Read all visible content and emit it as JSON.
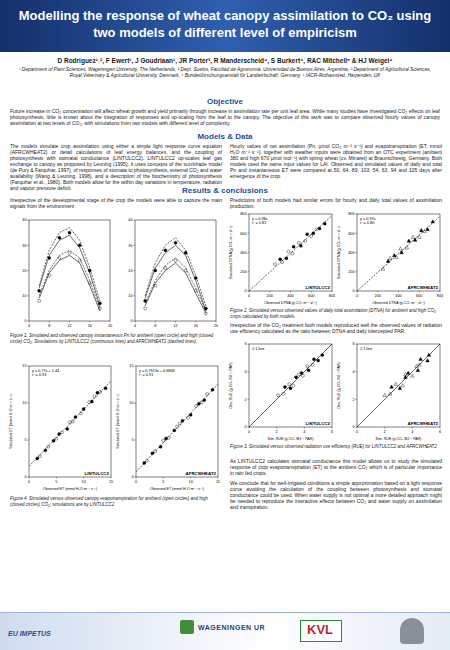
{
  "header": {
    "title": "Modelling the response of wheat canopy assimilation to CO₂ using two models of different level of empiricism",
    "authors": "D Rodriguez¹˒², F Ewert¹, J Goudriaan¹, JR Porter³, R Manderscheid⁴, S Burkert⁴, RAC Mitchell⁵ & HJ Weigel⁴",
    "affiliations": "¹ Department of Plant Sciences, Wageningen University, The Netherlands, ² Dept. Suelos, Facultad de Agronomía, Universidad de Buenos Aires, Argentina, ³ Department of Agricultural Sciences, Royal Veterinary & Agricultural University, Denmark, ⁴ Bundesforschungsanstalt für Landwirtschaft, Germany, ⁵ IACR-Rothamsted, Harpenden, UK"
  },
  "objective": {
    "heading": "Objective",
    "text": "Future increase in CO₂ concentration will affect wheat growth and yield primarily through increase in assimilation rate per unit leaf area. While many studies have investigated CO₂ effects on leaf photosynthesis, little is known about the integration of responses and up-scaling from the leaf to the canopy. The objective of this work was to compare observed hourly values of canopy assimilation at two levels of CO₂, with simulations from two models with different level of complexity."
  },
  "models": {
    "heading": "Models & Data",
    "left": "The models simulate crop assimilation using either a simple light response curve equation (AFRCWHEAT2) or detail calculations of leaf energy balances, and the coupling of photosynthesis with stomatal conductance (LINTULCC2). LINTULCC2 up-scales leaf gas exchange to canopy as proposed by Leuning (1995). It uses concepts of the sun/shade model (de Pury & Farquhar, 1997), of responses of stomata to photosynthesis, external CO₂ and water availability (Wang & Leuning, 1998), and a description of the biochemistry of photosynthesis (Farquhar et al., 1980). Both models allow for the within day variations in temperature, radiation and vapour pressure deficit.",
    "right": "Hourly values of net assimilation (Pn, µmol CO₂ m⁻² s⁻¹) and evapotranspiration (ET, mmol H₂O m⁻² s⁻¹), together with weather inputs were obtained from an OTC experiment (ambient 380 and high 670 µmol mol⁻¹) with spring wheat (cv. Minaret) at Braunschweig, Germany. Both models used the same input values for LAI. Observed and simulated values of daily and total Pn and instantaneous ET were compared at 50, 64, 89, 103, 54, 63, 94 and 105 days after emergence of the crop."
  },
  "results": {
    "heading": "Results & conclusions",
    "left_intro": "Irrespective of the developmental stage of the crop the models were able to capture the main signals from the environment",
    "fig1_caption": "Figure 1. Simulated and observed canopy instantaneous Pn for ambient (open circle) and high (closed circle) CO₂. Simulations by LINTULCC2 (continuous lines) and AFRCWHEAT2 (dashed lines).",
    "fig4_caption": "Figure 4. Simulated versus observed canopy evapotranspiration for ambient (open circles) and high (closed circles) CO₂; simulations are by LINTULCC2.",
    "right_intro": "Predictions of both models had similar errors for hourly and daily total values of assimilation production.",
    "fig2_caption": "Figure 2. Simulated versus observed values of daily total assimilation (DTNA) for ambient and high CO₂ crops calculated by both models.",
    "right_text_1": "Irrespective of the CO₂ treatment both models reproduced well the observed values of radiation use efficiency calculated as the ratio between DTNA and daily intercepted PAR.",
    "fig3_caption": "Figure 3. Simulated versus observed radiation use efficiency (RUE) for LINTULCC2 and AFRCWHEAT2",
    "right_text_2": "As LINTULCC2 calculates stomatal conductance this model allows us to study the simulated response of crop evapotranspiration (ET) to the ambient CO₂ which is of particular importance in rain fed crops.",
    "right_text_3": "We conclude that for well-irrigated conditions a simple approximation based on a light response curve avoiding the calculation of the coupling between photosynthesis and stomatal conductance could be used. When water supply is not optimal a more detailed approach might be needed to reproduce the interactive effects between CO₂ and water supply on assimilation and transpiration."
  },
  "footer": {
    "left": "EU IMPETUS",
    "center": "WAGENINGEN UR",
    "right": "KVL"
  },
  "chart_data": [
    {
      "type": "line",
      "x": [
        6,
        8,
        10,
        12,
        14,
        16,
        18
      ],
      "xlim": [
        4,
        20
      ],
      "xticks": [
        4,
        8,
        12,
        16,
        20
      ],
      "ylim": [
        0,
        40
      ],
      "yticks": [
        0,
        10,
        20,
        30,
        40
      ],
      "series": [
        {
          "type": "scatter",
          "marker": "circle-open",
          "color": "#000000",
          "values": [
            8,
            18,
            25,
            27,
            24,
            15,
            5
          ]
        },
        {
          "type": "scatter",
          "marker": "circle",
          "color": "#000000",
          "values": [
            12,
            25,
            33,
            35,
            30,
            20,
            7
          ]
        },
        {
          "type": "line",
          "line_style": "solid",
          "color": "#000000",
          "values": [
            9,
            19,
            24,
            26,
            23,
            14,
            4
          ]
        },
        {
          "type": "line",
          "line_style": "solid",
          "color": "#000000",
          "values": [
            13,
            26,
            32,
            34,
            29,
            19,
            6
          ]
        },
        {
          "type": "line",
          "line_style": "dashed",
          "color": "#000000",
          "values": [
            10,
            20,
            26,
            28,
            25,
            16,
            5
          ]
        },
        {
          "type": "line",
          "line_style": "dashed",
          "color": "#000000",
          "values": [
            14,
            28,
            35,
            37,
            32,
            21,
            8
          ]
        }
      ]
    },
    {
      "type": "line",
      "x": [
        6,
        8,
        10,
        12,
        14,
        16,
        18
      ],
      "xlim": [
        4,
        20
      ],
      "xticks": [
        4,
        8,
        12,
        16,
        20
      ],
      "ylim": [
        0,
        40
      ],
      "yticks": [
        0,
        10,
        20,
        30,
        40
      ],
      "series": [
        {
          "type": "scatter",
          "marker": "circle-open",
          "color": "#000000",
          "values": [
            5,
            14,
            21,
            24,
            20,
            12,
            3
          ]
        },
        {
          "type": "scatter",
          "marker": "circle",
          "color": "#000000",
          "values": [
            8,
            20,
            28,
            31,
            27,
            17,
            5
          ]
        },
        {
          "type": "line",
          "line_style": "solid",
          "color": "#000000",
          "values": [
            6,
            15,
            20,
            23,
            19,
            11,
            3
          ]
        },
        {
          "type": "line",
          "line_style": "solid",
          "color": "#000000",
          "values": [
            9,
            21,
            27,
            30,
            26,
            16,
            4
          ]
        },
        {
          "type": "line",
          "line_style": "dashed",
          "color": "#000000",
          "values": [
            7,
            16,
            22,
            25,
            21,
            13,
            4
          ]
        },
        {
          "type": "line",
          "line_style": "dashed",
          "color": "#000000",
          "values": [
            10,
            23,
            30,
            33,
            28,
            18,
            6
          ]
        }
      ]
    },
    {
      "type": "scatter",
      "title": "LINTULCC2",
      "x_label": "Observed ET (mmol H₂O m⁻² s⁻¹)",
      "y_label": "Simulated ET (mmol H₂O m⁻² s⁻¹)",
      "annotations": [
        "y = 0.77x + 1.44",
        "r² = 0.93"
      ],
      "xlim": [
        0,
        15
      ],
      "xticks": [
        0,
        5,
        10,
        15
      ],
      "ylim": [
        0,
        15
      ],
      "yticks": [
        0,
        5,
        10,
        15
      ],
      "series": [
        {
          "marker": "circle-open",
          "color": "#000000",
          "x": [
            2,
            3.5,
            5,
            6,
            7.5,
            8,
            9.5,
            11,
            12,
            13
          ],
          "values": [
            2.8,
            4.1,
            5.2,
            6.0,
            7.4,
            7.5,
            8.6,
            10.1,
            10.9,
            11.5
          ]
        },
        {
          "marker": "circle",
          "color": "#000000",
          "x": [
            1.5,
            3,
            4.5,
            5.5,
            7,
            8.5,
            10,
            11.5,
            12.5,
            14
          ],
          "values": [
            2.5,
            3.6,
            4.9,
            5.8,
            6.5,
            8.1,
            9.2,
            10.2,
            11.4,
            12.0
          ]
        },
        {
          "type": "line",
          "line_style": "dashed",
          "color": "#000000",
          "x": [
            0,
            15
          ],
          "values": [
            1.44,
            13.0
          ]
        }
      ]
    },
    {
      "type": "scatter",
      "title": "AFRCWHEAT2",
      "x_label": "Observed ET (mmol H₂O m⁻² s⁻¹)",
      "y_label": "Simulated ET (mmol H₂O m⁻² s⁻¹)",
      "annotations": [
        "y = 0.7913x + 0.6868",
        "r² = 0.91"
      ],
      "xlim": [
        0,
        15
      ],
      "xticks": [
        0,
        5,
        10,
        15
      ],
      "ylim": [
        0,
        15
      ],
      "yticks": [
        0,
        5,
        10,
        15
      ],
      "series": [
        {
          "marker": "circle-open",
          "color": "#000000",
          "x": [
            2,
            3.5,
            5,
            6,
            7.5,
            8,
            9.5,
            11,
            12,
            13
          ],
          "values": [
            2.2,
            3.5,
            4.9,
            5.3,
            6.8,
            7.2,
            8.0,
            9.6,
            10.1,
            11.2
          ]
        },
        {
          "marker": "circle",
          "color": "#000000",
          "x": [
            1.5,
            3,
            4.5,
            5.5,
            7,
            8.5,
            10,
            11.5,
            12.5,
            14
          ],
          "values": [
            1.9,
            3.2,
            4.1,
            5.2,
            6.3,
            7.6,
            8.4,
            9.9,
            10.4,
            11.8
          ]
        },
        {
          "type": "line",
          "line_style": "dashed",
          "color": "#000000",
          "x": [
            0,
            15
          ],
          "values": [
            0.69,
            12.56
          ]
        }
      ]
    },
    {
      "type": "scatter",
      "title": "LINTULCC2",
      "x_label": "Observed DTNA (g CO₂ m⁻² d⁻¹)",
      "y_label": "Simulated DTNA (g CO₂ m⁻² d⁻¹)",
      "annotations": [
        "y = 0.98x",
        "r² = 0.81"
      ],
      "xlim": [
        0,
        800
      ],
      "xticks": [
        0,
        200,
        400,
        600,
        800
      ],
      "ylim": [
        0,
        800
      ],
      "yticks": [
        0,
        200,
        400,
        600,
        800
      ],
      "series": [
        {
          "marker": "circle-open",
          "color": "#000000",
          "x": [
            250,
            320,
            380,
            420,
            480,
            540,
            600,
            650
          ],
          "values": [
            280,
            300,
            410,
            390,
            500,
            520,
            570,
            640
          ]
        },
        {
          "marker": "circle",
          "color": "#000000",
          "x": [
            300,
            360,
            430,
            500,
            560,
            620,
            680,
            730
          ],
          "values": [
            330,
            340,
            460,
            470,
            590,
            600,
            650,
            700
          ]
        },
        {
          "type": "line",
          "line_style": "dashed",
          "color": "#000000",
          "x": [
            0,
            800
          ],
          "values": [
            0,
            784
          ]
        }
      ]
    },
    {
      "type": "scatter",
      "title": "AFRCWHEAT2",
      "x_label": "Observed DTNA (g CO₂ m⁻² d⁻¹)",
      "y_label": "Simulated DTNA (g CO₂ m⁻² d⁻¹)",
      "annotations": [
        "y = 0.97x",
        "r² = 0.80"
      ],
      "xlim": [
        0,
        800
      ],
      "xticks": [
        0,
        200,
        400,
        600,
        800
      ],
      "ylim": [
        0,
        800
      ],
      "yticks": [
        0,
        200,
        400,
        600,
        800
      ],
      "series": [
        {
          "marker": "triangle-open",
          "color": "#000000",
          "x": [
            250,
            320,
            380,
            420,
            480,
            540,
            600,
            650
          ],
          "values": [
            230,
            340,
            350,
            440,
            450,
            560,
            560,
            620
          ]
        },
        {
          "marker": "triangle",
          "color": "#000000",
          "x": [
            300,
            360,
            430,
            500,
            560,
            620,
            680,
            730
          ],
          "values": [
            310,
            370,
            400,
            520,
            530,
            630,
            640,
            720
          ]
        },
        {
          "type": "line",
          "line_style": "dashed",
          "color": "#000000",
          "x": [
            0,
            800
          ],
          "values": [
            0,
            776
          ]
        }
      ]
    },
    {
      "type": "scatter",
      "title": "LINTULCC2",
      "x_label": "Sim. RUE (g CO₂ MJ⁻¹ PAR)",
      "y_label": "Obs. RUE (g CO₂ MJ⁻¹ PAR)",
      "annotations": [
        "1:1 line"
      ],
      "xlim": [
        0,
        6
      ],
      "xticks": [
        0,
        2,
        4,
        6
      ],
      "ylim": [
        0,
        6
      ],
      "yticks": [
        0,
        2,
        4,
        6
      ],
      "series": [
        {
          "marker": "circle-open",
          "color": "#000000",
          "x": [
            2.1,
            2.5,
            2.9,
            3.2,
            3.6,
            3.9,
            4.2,
            4.6
          ],
          "values": [
            2.3,
            2.4,
            3.1,
            3.0,
            3.8,
            3.7,
            4.4,
            4.5
          ]
        },
        {
          "marker": "circle",
          "color": "#000000",
          "x": [
            2.6,
            3.0,
            3.4,
            3.8,
            4.3,
            4.7,
            5.0,
            5.3
          ],
          "values": [
            2.9,
            2.8,
            3.6,
            3.9,
            4.1,
            4.9,
            4.8,
            5.2
          ]
        },
        {
          "type": "line",
          "line_style": "solid",
          "color": "#000000",
          "x": [
            0,
            6
          ],
          "values": [
            0,
            6
          ]
        }
      ]
    },
    {
      "type": "scatter",
      "title": "AFRCWHEAT2",
      "x_label": "Sim. RUE (g CO₂ MJ⁻¹ PAR)",
      "y_label": "Obs. RUE (g CO₂ MJ⁻¹ PAR)",
      "annotations": [
        "1:1 line"
      ],
      "xlim": [
        0,
        6
      ],
      "xticks": [
        0,
        2,
        4,
        6
      ],
      "ylim": [
        0,
        6
      ],
      "yticks": [
        0,
        2,
        4,
        6
      ],
      "series": [
        {
          "marker": "triangle-open",
          "color": "#000000",
          "x": [
            2.0,
            2.4,
            2.8,
            3.3,
            3.5,
            4.0,
            4.3,
            4.5
          ],
          "values": [
            2.3,
            2.4,
            3.1,
            3.0,
            3.8,
            3.7,
            4.4,
            4.5
          ]
        },
        {
          "marker": "triangle",
          "color": "#000000",
          "x": [
            2.5,
            3.1,
            3.5,
            3.7,
            4.4,
            4.6,
            5.1,
            5.2
          ],
          "values": [
            2.9,
            2.8,
            3.6,
            3.9,
            4.1,
            4.9,
            4.8,
            5.2
          ]
        },
        {
          "type": "line",
          "line_style": "solid",
          "color": "#000000",
          "x": [
            0,
            6
          ],
          "values": [
            0,
            6
          ]
        }
      ]
    }
  ]
}
